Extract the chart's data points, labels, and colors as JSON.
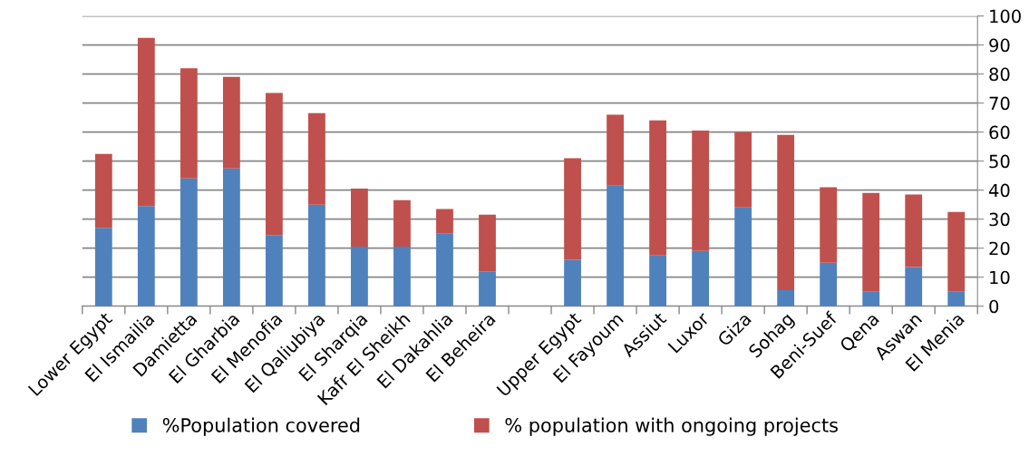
{
  "chart_data": {
    "type": "bar",
    "stacked": true,
    "categories": [
      "Lower Egypt",
      "El Ismailia",
      "Damietta",
      "El Gharbia",
      "El Menofia",
      "El Qaliubiya",
      "El Sharqia",
      "Kafr El Sheikh",
      "El Dakahlia",
      "El Beheira",
      null,
      "Upper Egypt",
      "El Fayoum",
      "Assiut",
      "Luxor",
      "Giza",
      "Sohag",
      "Beni-Suef",
      "Qena",
      "Aswan",
      "El Menia"
    ],
    "series": [
      {
        "name": "%Population covered",
        "color": "#4f81bd",
        "values": [
          27,
          34.5,
          44,
          47.5,
          24.5,
          35,
          20.5,
          20.5,
          25,
          12,
          null,
          16,
          41.5,
          17.5,
          19,
          34,
          5.5,
          15,
          5,
          13.5,
          5
        ]
      },
      {
        "name": "% population with ongoing projects",
        "color": "#c0504d",
        "values": [
          25.5,
          58,
          38,
          31.5,
          49,
          31.5,
          20,
          16,
          8.5,
          19.5,
          null,
          35,
          24.5,
          46.5,
          41.5,
          26,
          53.5,
          26,
          34,
          25,
          27.5
        ]
      }
    ],
    "ylim": [
      0,
      100
    ],
    "yticks": [
      0,
      10,
      20,
      30,
      40,
      50,
      60,
      70,
      80,
      90,
      100
    ],
    "grid": "y",
    "legend": "bottom"
  }
}
